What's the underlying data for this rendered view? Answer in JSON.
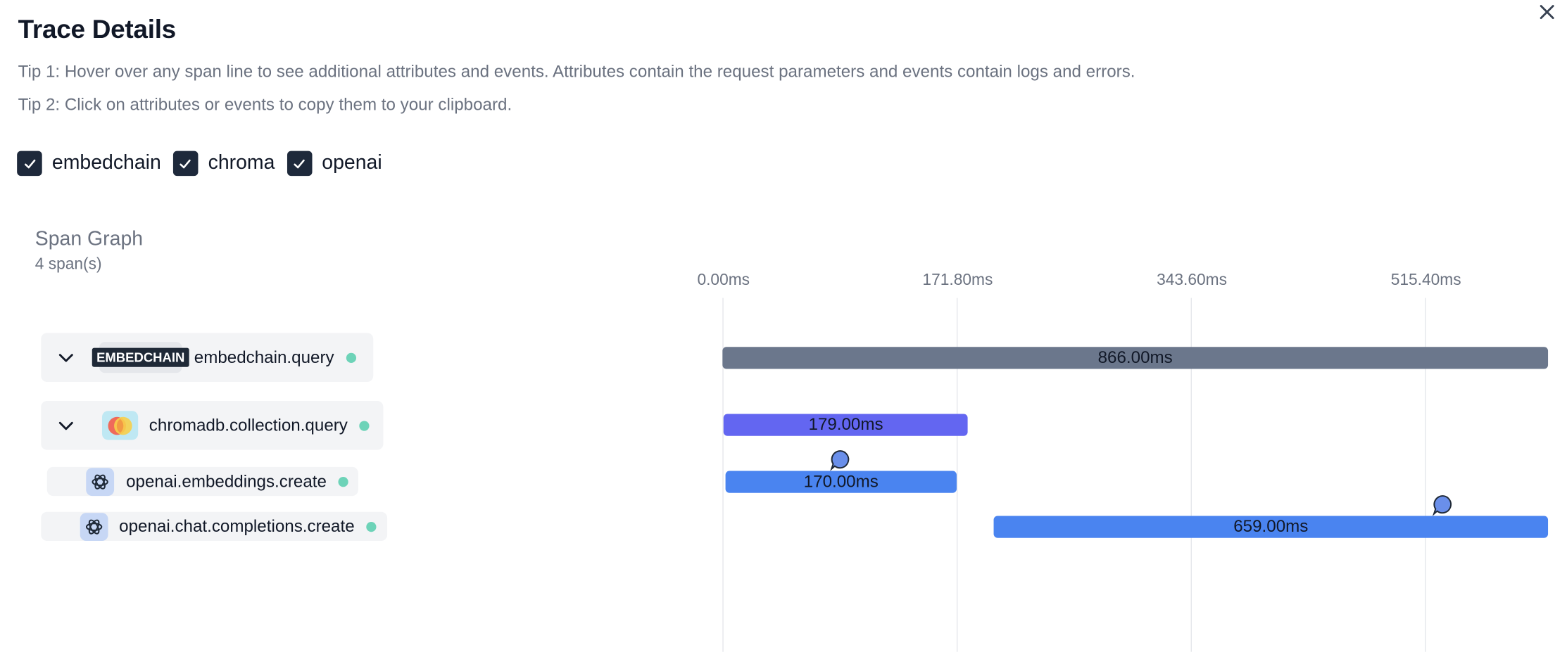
{
  "header": {
    "title": "Trace Details",
    "tip1": "Tip 1: Hover over any span line to see additional attributes and events. Attributes contain the request parameters and events contain logs and errors.",
    "tip2": "Tip 2: Click on attributes or events to copy them to your clipboard."
  },
  "filters": [
    {
      "label": "embedchain",
      "checked": true
    },
    {
      "label": "chroma",
      "checked": true
    },
    {
      "label": "openai",
      "checked": true
    }
  ],
  "graph": {
    "title": "Span Graph",
    "count": "4 span(s)",
    "axis_ticks": [
      "0.00ms",
      "171.80ms",
      "343.60ms",
      "515.40ms"
    ],
    "axis_step_ms": 171.8
  },
  "spans": [
    {
      "name": "embedchain.query",
      "vendor": "embedchain",
      "vendor_logo_text": "EMBEDCHAIN",
      "icon": "embedchain-logo",
      "duration": "866.00ms",
      "start_ms": 0,
      "duration_ms": 866,
      "has_event": false,
      "status": "ok"
    },
    {
      "name": "chromadb.collection.query",
      "vendor": "chroma",
      "icon": "chroma-logo",
      "duration": "179.00ms",
      "start_ms": 1,
      "duration_ms": 179,
      "has_event": false,
      "status": "ok"
    },
    {
      "name": "openai.embeddings.create",
      "vendor": "openai",
      "icon": "openai-logo",
      "duration": "170.00ms",
      "start_ms": 2,
      "duration_ms": 170,
      "has_event": true,
      "status": "ok"
    },
    {
      "name": "openai.chat.completions.create",
      "vendor": "openai",
      "icon": "openai-logo",
      "duration": "659.00ms",
      "start_ms": 199,
      "duration_ms": 659,
      "has_event": true,
      "status": "ok"
    }
  ],
  "colors": {
    "embedchain_bar": "#6b778c",
    "chroma_bar": "#6366f1",
    "openai_bar": "#4a84f0",
    "status_dot": "#6dd3b8",
    "event_bubble": "#6a8fea"
  }
}
